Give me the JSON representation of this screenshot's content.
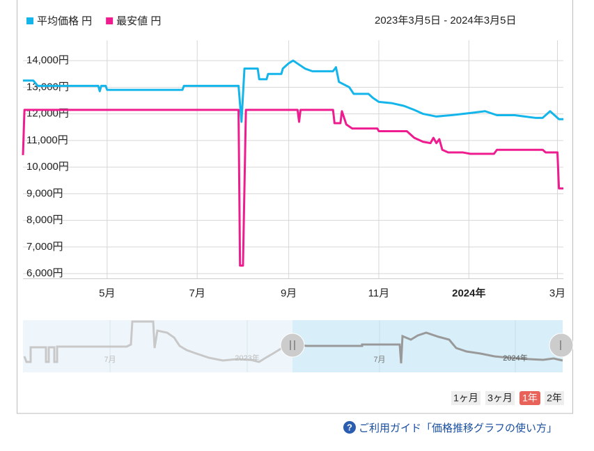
{
  "chart_data": {
    "type": "line",
    "subtitle": "2023年3月5日 - 2024年3月5日",
    "xlim": [
      "2023-03-05",
      "2024-03-05"
    ],
    "xticks": [
      {
        "value": "2023-05-01",
        "label": "5月"
      },
      {
        "value": "2023-07-01",
        "label": "7月"
      },
      {
        "value": "2023-09-01",
        "label": "9月"
      },
      {
        "value": "2023-11-01",
        "label": "11月"
      },
      {
        "value": "2024-01-01",
        "label": "2024年"
      },
      {
        "value": "2024-03-01",
        "label": "3月"
      }
    ],
    "ylim": [
      5820,
      14760
    ],
    "yticks": [
      {
        "value": 6000,
        "label": "6,000円"
      },
      {
        "value": 7000,
        "label": "7,000円"
      },
      {
        "value": 8000,
        "label": "8,000円"
      },
      {
        "value": 9000,
        "label": "9,000円"
      },
      {
        "value": 10000,
        "label": "10,000円"
      },
      {
        "value": 11000,
        "label": "11,000円"
      },
      {
        "value": 12000,
        "label": "12,000円"
      },
      {
        "value": 13000,
        "label": "13,000円"
      },
      {
        "value": 14000,
        "label": "14,000円"
      }
    ],
    "grid": true,
    "series": [
      {
        "name": "平均価格 円",
        "color": "#13b5ea",
        "x": [
          "2023-03-05",
          "2023-03-12",
          "2023-03-15",
          "2023-04-25",
          "2023-04-26",
          "2023-04-27",
          "2023-04-30",
          "2023-05-01",
          "2023-06-21",
          "2023-06-22",
          "2023-07-29",
          "2023-07-31",
          "2023-08-02",
          "2023-08-11",
          "2023-08-12",
          "2023-08-17",
          "2023-08-18",
          "2023-08-27",
          "2023-08-28",
          "2023-09-01",
          "2023-09-04",
          "2023-09-08",
          "2023-09-12",
          "2023-09-17",
          "2023-10-01",
          "2023-10-03",
          "2023-10-05",
          "2023-10-12",
          "2023-10-15",
          "2023-10-25",
          "2023-10-28",
          "2023-11-01",
          "2023-11-10",
          "2023-11-18",
          "2023-11-25",
          "2023-12-01",
          "2023-12-10",
          "2023-12-20",
          "2023-12-28",
          "2024-01-05",
          "2024-01-12",
          "2024-01-20",
          "2024-02-01",
          "2024-02-15",
          "2024-02-20",
          "2024-02-25",
          "2024-02-28",
          "2024-03-02",
          "2024-03-05"
        ],
        "values": [
          13250,
          13250,
          13050,
          13050,
          12850,
          13050,
          13050,
          12900,
          12900,
          13050,
          13050,
          11700,
          13700,
          13700,
          13300,
          13300,
          13500,
          13500,
          13700,
          13900,
          14000,
          13850,
          13700,
          13600,
          13600,
          13750,
          13200,
          13000,
          12750,
          12750,
          12600,
          12450,
          12400,
          12300,
          12150,
          12000,
          11900,
          11950,
          12000,
          12050,
          12100,
          11950,
          11950,
          11850,
          11850,
          12100,
          11950,
          11800,
          11800
        ]
      },
      {
        "name": "最安値 円",
        "color": "#ee1c8e",
        "x": [
          "2023-03-05",
          "2023-03-06",
          "2023-07-29",
          "2023-07-30",
          "2023-08-01",
          "2023-08-03",
          "2023-09-07",
          "2023-09-08",
          "2023-09-09",
          "2023-10-01",
          "2023-10-02",
          "2023-10-06",
          "2023-10-07",
          "2023-10-10",
          "2023-10-14",
          "2023-10-31",
          "2023-11-01",
          "2023-11-20",
          "2023-11-25",
          "2023-12-01",
          "2023-12-06",
          "2023-12-08",
          "2023-12-10",
          "2023-12-12",
          "2023-12-14",
          "2023-12-18",
          "2023-12-28",
          "2024-01-02",
          "2024-01-18",
          "2024-01-20",
          "2024-02-20",
          "2024-02-22",
          "2024-03-01",
          "2024-03-02",
          "2024-03-05"
        ],
        "values": [
          10450,
          12150,
          12150,
          6300,
          6300,
          12150,
          12150,
          11700,
          12150,
          12150,
          11650,
          11650,
          12100,
          11600,
          11450,
          11450,
          11350,
          11350,
          11100,
          10950,
          10900,
          11100,
          10900,
          11050,
          10650,
          10550,
          10550,
          10500,
          10500,
          10650,
          10650,
          10550,
          10550,
          9200,
          9200
        ]
      }
    ]
  },
  "navigator": {
    "labels": [
      "7月",
      "2023年",
      "7月",
      "2024年"
    ]
  },
  "range_buttons": [
    "1ヶ月",
    "3ヶ月",
    "1年",
    "2年"
  ],
  "guide_link": "ご利用ガイド「価格推移グラフの使い方」"
}
